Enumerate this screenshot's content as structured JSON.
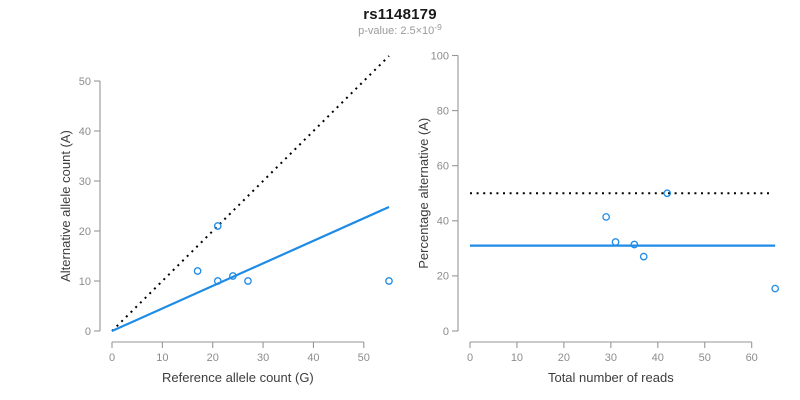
{
  "header": {
    "title": "rs1148179",
    "subtitle_label": "p-value: 2.5×10",
    "subtitle_exponent": "-9"
  },
  "colors": {
    "accent_blue": "#1E8BE6",
    "identity_black": "#000000",
    "axis_gray": "#969696",
    "tick_label_gray": "#8c8c8c",
    "axis_title_dark": "#3d3d3d",
    "title_black": "#1a1a1a",
    "subtitle_gray": "#9b9b9b"
  },
  "chart_data": [
    {
      "name": "allele-counts-scatter",
      "type": "scatter",
      "title": "",
      "xlabel": "Reference allele count (G)",
      "ylabel": "Alternative allele count (A)",
      "xlim": [
        0,
        55
      ],
      "ylim": [
        0,
        55
      ],
      "xticks": [
        0,
        10,
        20,
        30,
        40,
        50
      ],
      "yticks": [
        0,
        10,
        20,
        30,
        40,
        50
      ],
      "grid": false,
      "points": [
        [
          17,
          12
        ],
        [
          21,
          21
        ],
        [
          21,
          10
        ],
        [
          24,
          11
        ],
        [
          27,
          10
        ],
        [
          55,
          10
        ]
      ],
      "lines": [
        {
          "name": "identity-line",
          "style": "dotted",
          "color": "#000000",
          "from": [
            0,
            0
          ],
          "to": [
            55,
            55
          ]
        },
        {
          "name": "fit-line",
          "style": "solid",
          "color": "#1E8BE6",
          "from": [
            0,
            0
          ],
          "to": [
            55,
            24.8
          ]
        }
      ]
    },
    {
      "name": "percentage-vs-reads-scatter",
      "type": "scatter",
      "title": "",
      "xlabel": "Total number of reads",
      "ylabel": "Percentage alternative (A)",
      "xlim": [
        0,
        65.5
      ],
      "ylim": [
        0,
        100
      ],
      "xticks": [
        0,
        10,
        20,
        30,
        40,
        50,
        60
      ],
      "yticks": [
        0,
        20,
        40,
        60,
        80,
        100
      ],
      "grid": false,
      "points": [
        [
          29,
          41.4
        ],
        [
          31,
          32.3
        ],
        [
          35,
          31.4
        ],
        [
          37,
          27
        ],
        [
          42,
          50
        ],
        [
          65,
          15.4
        ]
      ],
      "lines": [
        {
          "name": "expected-50pct-line",
          "style": "dotted",
          "color": "#000000",
          "from": [
            0,
            50
          ],
          "to": [
            63.9,
            50
          ]
        },
        {
          "name": "mean-percentage-line",
          "style": "solid",
          "color": "#1E8BE6",
          "from": [
            0,
            31
          ],
          "to": [
            65,
            31
          ]
        }
      ]
    }
  ]
}
